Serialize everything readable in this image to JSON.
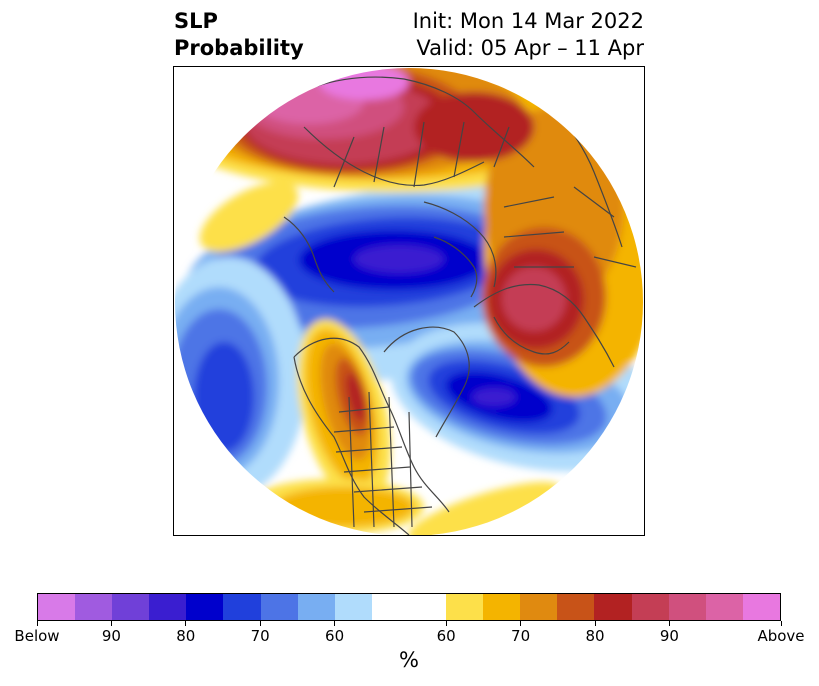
{
  "title": {
    "left_line1": "SLP",
    "left_line2": "Probability",
    "right_line1": "Init: Mon 14 Mar 2022",
    "right_line2": "Valid: 05 Apr – 11 Apr"
  },
  "map": {
    "projection": "north-polar-stereographic",
    "boundaries_color": "#444444"
  },
  "colorbar": {
    "colors": [
      "#d87ae8",
      "#a05be0",
      "#7040d8",
      "#3a1ed0",
      "#0000cc",
      "#2040dc",
      "#4d74e6",
      "#78aef2",
      "#b0dcfc",
      "#ffffff",
      "#ffffff",
      "#fde04a",
      "#f4b400",
      "#e08a10",
      "#c85318",
      "#b22222",
      "#c43e55",
      "#d0507e",
      "#dc63a6",
      "#e878e0"
    ],
    "tick_labels": [
      "Below",
      "90",
      "80",
      "70",
      "60",
      "60",
      "70",
      "80",
      "90",
      "Above"
    ],
    "unit": "%"
  }
}
